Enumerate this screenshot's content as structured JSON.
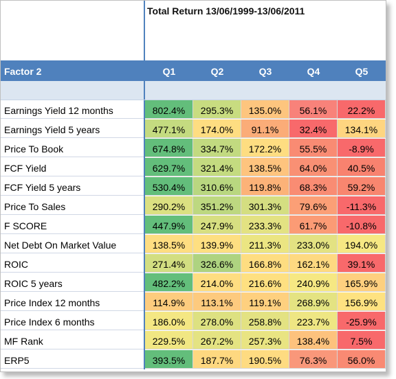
{
  "title": "Total Return 13/06/1999-13/06/2011",
  "header": {
    "factor": "Factor 2",
    "quintiles": [
      "Q1",
      "Q2",
      "Q3",
      "Q4",
      "Q5"
    ]
  },
  "rows": [
    {
      "label": "Earnings Yield 12 months",
      "values": [
        "802.4%",
        "295.3%",
        "135.0%",
        "56.1%",
        "22.2%"
      ],
      "colors": [
        "#63be7b",
        "#c8dc80",
        "#fdc57e",
        "#f8827a",
        "#f8696b"
      ]
    },
    {
      "label": "Earnings Yield 5 years",
      "values": [
        "477.1%",
        "174.0%",
        "91.1%",
        "32.4%",
        "134.1%"
      ],
      "colors": [
        "#c4db80",
        "#fedd81",
        "#fbac78",
        "#f8696b",
        "#fed580"
      ]
    },
    {
      "label": "Price To Book",
      "values": [
        "674.8%",
        "334.7%",
        "172.2%",
        "55.5%",
        "-8.9%"
      ],
      "colors": [
        "#63be7b",
        "#c2da80",
        "#fedd81",
        "#f98b73",
        "#f8696b"
      ]
    },
    {
      "label": "FCF Yield",
      "values": [
        "629.7%",
        "321.4%",
        "138.5%",
        "64.0%",
        "40.5%"
      ],
      "colors": [
        "#63be7b",
        "#c4db80",
        "#fec47e",
        "#f99074",
        "#f8826f"
      ]
    },
    {
      "label": "FCF Yield 5 years",
      "values": [
        "530.4%",
        "310.6%",
        "119.8%",
        "68.3%",
        "59.2%"
      ],
      "colors": [
        "#63be7b",
        "#b9d780",
        "#fcb278",
        "#f98c73",
        "#f8866f"
      ]
    },
    {
      "label": "Price To Sales",
      "values": [
        "290.2%",
        "351.2%",
        "301.3%",
        "79.6%",
        "-11.3%"
      ],
      "colors": [
        "#dbe081",
        "#bdd880",
        "#d4de81",
        "#fb9f76",
        "#f8696b"
      ]
    },
    {
      "label": "F SCORE",
      "values": [
        "447.9%",
        "247.9%",
        "233.3%",
        "61.7%",
        "-10.8%"
      ],
      "colors": [
        "#63be7b",
        "#d7df81",
        "#e3e282",
        "#fb9b75",
        "#f8696b"
      ]
    },
    {
      "label": "Net Debt On Market Value",
      "values": [
        "138.5%",
        "139.9%",
        "211.3%",
        "233.0%",
        "194.0%"
      ],
      "colors": [
        "#fedd81",
        "#fedf81",
        "#ebe582",
        "#e3e282",
        "#f6e883"
      ]
    },
    {
      "label": "ROIC",
      "values": [
        "271.4%",
        "326.6%",
        "166.8%",
        "162.1%",
        "39.1%"
      ],
      "colors": [
        "#d2de81",
        "#aed380",
        "#fedd81",
        "#fed981",
        "#f8696b"
      ]
    },
    {
      "label": "ROIC 5 years",
      "values": [
        "482.2%",
        "214.0%",
        "216.6%",
        "240.9%",
        "165.9%"
      ],
      "colors": [
        "#63be7b",
        "#fedd81",
        "#fee081",
        "#f6e883",
        "#fed07f"
      ]
    },
    {
      "label": "Price Index 12 months",
      "values": [
        "114.9%",
        "113.1%",
        "119.1%",
        "268.9%",
        "156.9%"
      ],
      "colors": [
        "#fdcc7e",
        "#fdca7e",
        "#fed07f",
        "#e4e382",
        "#fee281"
      ]
    },
    {
      "label": "Price Index 6 months",
      "values": [
        "186.0%",
        "278.0%",
        "258.8%",
        "223.7%",
        "-25.9%"
      ],
      "colors": [
        "#f4e783",
        "#dde181",
        "#e3e282",
        "#eee683",
        "#f8696b"
      ]
    },
    {
      "label": "MF Rank",
      "values": [
        "229.5%",
        "267.2%",
        "257.3%",
        "138.4%",
        "7.5%"
      ],
      "colors": [
        "#f1e783",
        "#e4e382",
        "#e9e482",
        "#fdc27d",
        "#f8696b"
      ]
    },
    {
      "label": "ERP5",
      "values": [
        "393.5%",
        "187.7%",
        "190.5%",
        "76.3%",
        "56.0%"
      ],
      "colors": [
        "#63be7b",
        "#fed880",
        "#fedb81",
        "#f9977a",
        "#f98a73"
      ]
    }
  ]
}
